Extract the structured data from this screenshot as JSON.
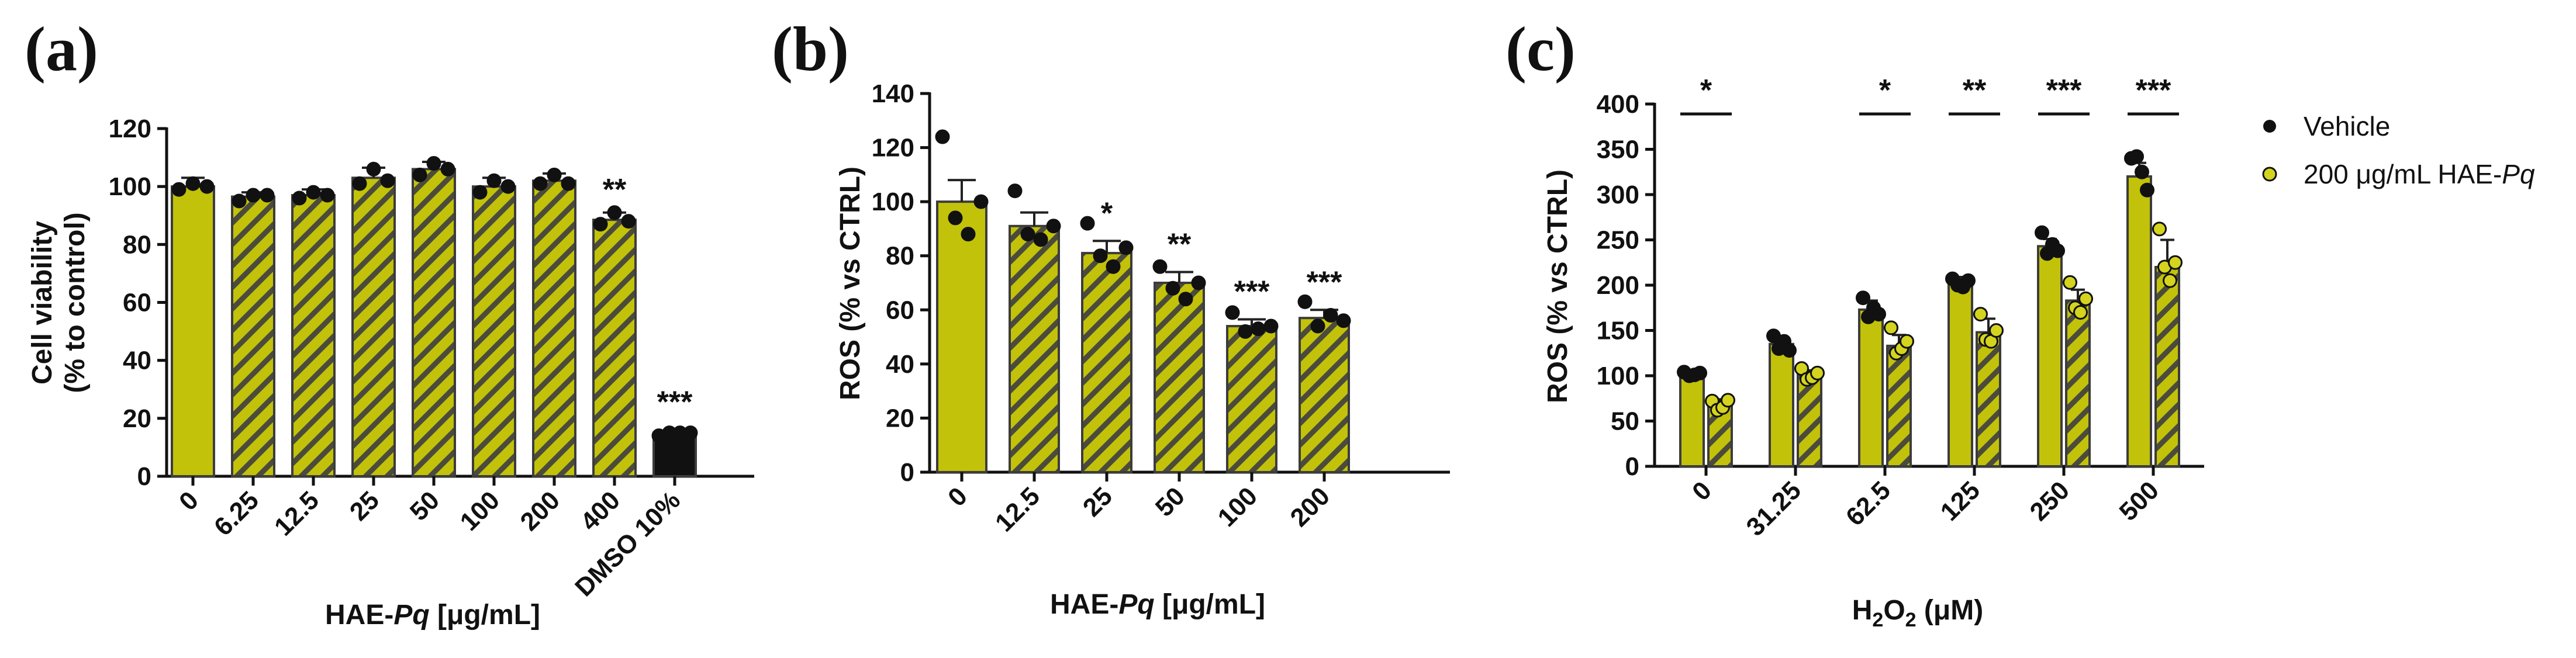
{
  "colors": {
    "bar": "#c2c20a",
    "hatch": "#4b4b3c",
    "outline": "#3c3c3c",
    "dmso": "#111111",
    "point_dark": "#111111",
    "point_light": "#d4d41e"
  },
  "chart_data": [
    {
      "id": "a",
      "panel": "(a)",
      "type": "bar",
      "ylabel": [
        "Cell viability",
        "(% to control)"
      ],
      "xlabel": {
        "prefix": "HAE-",
        "italic": "Pq",
        "suffix": " [μg/mL]"
      },
      "ylim": [
        0,
        120
      ],
      "yticks": [
        0,
        20,
        40,
        60,
        80,
        100,
        120
      ],
      "categories": [
        "0",
        "6.25",
        "12.5",
        "25",
        "50",
        "100",
        "200",
        "400"
      ],
      "values": [
        100,
        96.5,
        97,
        103,
        106,
        100,
        102,
        88.5
      ],
      "errors": [
        3,
        1.5,
        2,
        3.5,
        2.5,
        3,
        2.5,
        2.5
      ],
      "points": [
        [
          99,
          101,
          100
        ],
        [
          95,
          97,
          97
        ],
        [
          96,
          98,
          97
        ],
        [
          101,
          106,
          102
        ],
        [
          104,
          108,
          106
        ],
        [
          98,
          102,
          100
        ],
        [
          101,
          104,
          101
        ],
        [
          87,
          91,
          88
        ]
      ],
      "styles": [
        "solid",
        "hatch",
        "hatch",
        "hatch",
        "hatch",
        "hatch",
        "hatch",
        "hatch"
      ],
      "significance": [
        "",
        "",
        "",
        "",
        "",
        "",
        "",
        "**"
      ],
      "extra": {
        "category": "DMSO 10%",
        "value": 15,
        "error": 1,
        "points": [
          14,
          15,
          15,
          15
        ],
        "significance": "***"
      }
    },
    {
      "id": "b",
      "panel": "(b)",
      "type": "bar",
      "ylabel": [
        "ROS (% vs CTRL)"
      ],
      "xlabel": {
        "prefix": "HAE-",
        "italic": "Pq",
        "suffix": " [μg/mL]"
      },
      "ylim": [
        0,
        140
      ],
      "yticks": [
        0,
        20,
        40,
        60,
        80,
        100,
        120,
        140
      ],
      "categories": [
        "0",
        "12.5",
        "25",
        "50",
        "100",
        "200"
      ],
      "values": [
        100,
        91,
        81,
        70,
        54,
        57
      ],
      "errors": [
        8,
        5,
        4.5,
        4,
        2.5,
        3
      ],
      "points": [
        [
          124,
          94,
          88,
          100
        ],
        [
          104,
          88,
          86,
          91
        ],
        [
          92,
          80,
          76,
          83
        ],
        [
          76,
          68,
          64,
          70
        ],
        [
          59,
          52,
          53,
          54
        ],
        [
          63,
          54,
          58,
          56
        ]
      ],
      "styles": [
        "solid",
        "hatch",
        "hatch",
        "hatch",
        "hatch",
        "hatch"
      ],
      "significance": [
        "",
        "",
        "*",
        "**",
        "***",
        "***"
      ]
    },
    {
      "id": "c",
      "panel": "(c)",
      "type": "bar",
      "ylabel": [
        "ROS (% vs CTRL)"
      ],
      "xlabel": {
        "main": "H",
        "sub": "2",
        "mid": "O",
        "sub2": "2",
        "suffix": " (μM)"
      },
      "ylim": [
        0,
        400
      ],
      "yticks": [
        0,
        50,
        100,
        150,
        200,
        250,
        300,
        350,
        400
      ],
      "categories": [
        "0",
        "31.25",
        "62.5",
        "125",
        "250",
        "500"
      ],
      "series": [
        {
          "name": "Vehicle",
          "values": [
            102,
            135,
            173,
            203,
            243,
            320
          ],
          "errors": [
            2,
            8,
            10,
            6,
            8,
            15
          ],
          "points": [
            [
              104,
              100,
              101,
              103
            ],
            [
              144,
              130,
              138,
              128
            ],
            [
              186,
              165,
              175,
              168
            ],
            [
              207,
              200,
              198,
              205
            ],
            [
              258,
              235,
              245,
              238
            ],
            [
              340,
              342,
              325,
              305
            ]
          ]
        },
        {
          "name": "200 μg/mL HAE-Pq",
          "values": [
            68,
            101,
            133,
            148,
            183,
            220
          ],
          "errors": [
            6,
            5,
            12,
            15,
            12,
            30
          ],
          "points": [
            [
              72,
              62,
              65,
              73
            ],
            [
              108,
              96,
              98,
              103
            ],
            [
              153,
              125,
              130,
              138
            ],
            [
              168,
              140,
              138,
              150
            ],
            [
              203,
              175,
              170,
              185
            ],
            [
              262,
              220,
              205,
              225
            ]
          ]
        }
      ],
      "significance": [
        "*",
        "",
        "*",
        "**",
        "***",
        "***"
      ],
      "legend": {
        "vehicle": "Vehicle",
        "treated_prefix": "200 μg/mL HAE-",
        "treated_italic": "Pq"
      }
    }
  ]
}
